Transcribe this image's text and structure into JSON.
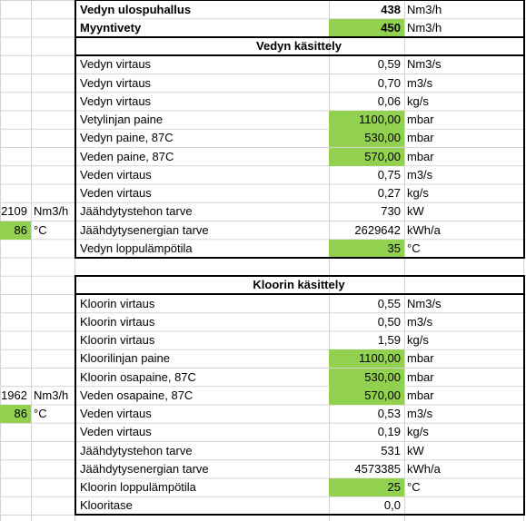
{
  "top": {
    "rows": [
      {
        "label": "Vedyn ulospuhallus",
        "value": "438",
        "unit": "Nm3/h",
        "bold": true,
        "green": false
      },
      {
        "label": "Myyntivety",
        "value": "450",
        "unit": "Nm3/h",
        "bold": true,
        "green": true
      }
    ]
  },
  "hydrogen": {
    "title": "Vedyn käsittely",
    "rows": [
      {
        "label": "Vedyn virtaus",
        "value": "0,59",
        "unit": "Nm3/s",
        "green": false
      },
      {
        "label": "Vedyn virtaus",
        "value": "0,70",
        "unit": "m3/s",
        "green": false
      },
      {
        "label": "Vedyn virtaus",
        "value": "0,06",
        "unit": "kg/s",
        "green": false
      },
      {
        "label": "Vetylinjan paine",
        "value": "1100,00",
        "unit": "mbar",
        "green": true
      },
      {
        "label": "Vedyn paine, 87C",
        "value": "530,00",
        "unit": "mbar",
        "green": true
      },
      {
        "label": "Veden paine, 87C",
        "value": "570,00",
        "unit": "mbar",
        "green": true
      },
      {
        "label": "Veden virtaus",
        "value": "0,75",
        "unit": "m3/s",
        "green": false
      },
      {
        "label": "Veden virtaus",
        "value": "0,27",
        "unit": "kg/s",
        "green": false
      },
      {
        "label": "Jäähdytystehon tarve",
        "value": "730",
        "unit": "kW",
        "green": false
      },
      {
        "label": "Jäähdytysenergian tarve",
        "value": "2629642",
        "unit": "kWh/a",
        "green": false
      },
      {
        "label": "Vedyn loppulämpötila",
        "value": "35",
        "unit": "°C",
        "green": true
      }
    ],
    "side": [
      {
        "value": "2109",
        "unit": "Nm3/h",
        "green": false
      },
      {
        "value": "86",
        "unit": "°C",
        "green": true
      }
    ]
  },
  "chlorine": {
    "title": "Kloorin käsittely",
    "rows": [
      {
        "label": "Kloorin virtaus",
        "value": "0,55",
        "unit": "Nm3/s",
        "green": false
      },
      {
        "label": "Kloorin virtaus",
        "value": "0,50",
        "unit": "m3/s",
        "green": false
      },
      {
        "label": "Kloorin virtaus",
        "value": "1,59",
        "unit": "kg/s",
        "green": false
      },
      {
        "label": "Kloorilinjan paine",
        "value": "1100,00",
        "unit": "mbar",
        "green": true
      },
      {
        "label": "Kloorin osapaine, 87C",
        "value": "530,00",
        "unit": "mbar",
        "green": true
      },
      {
        "label": "Veden osapaine, 87C",
        "value": "570,00",
        "unit": "mbar",
        "green": true
      },
      {
        "label": "Veden virtaus",
        "value": "0,53",
        "unit": "m3/s",
        "green": false
      },
      {
        "label": "Veden virtaus",
        "value": "0,19",
        "unit": "kg/s",
        "green": false
      },
      {
        "label": "Jäähdytystehon tarve",
        "value": "531",
        "unit": "kW",
        "green": false
      },
      {
        "label": "Jäähdytysenergian tarve",
        "value": "4573385",
        "unit": "kWh/a",
        "green": false
      },
      {
        "label": "Kloorin loppulämpötila",
        "value": "25",
        "unit": "°C",
        "green": true
      },
      {
        "label": "Klooritase",
        "value": "0,0",
        "unit": "",
        "green": false
      }
    ],
    "side": [
      {
        "value": "1962",
        "unit": "Nm3/h",
        "green": false
      },
      {
        "value": "86",
        "unit": "°C",
        "green": true
      }
    ]
  },
  "colors": {
    "highlight": "#92d050",
    "gridline": "#d4d4d4",
    "border": "#000000"
  }
}
